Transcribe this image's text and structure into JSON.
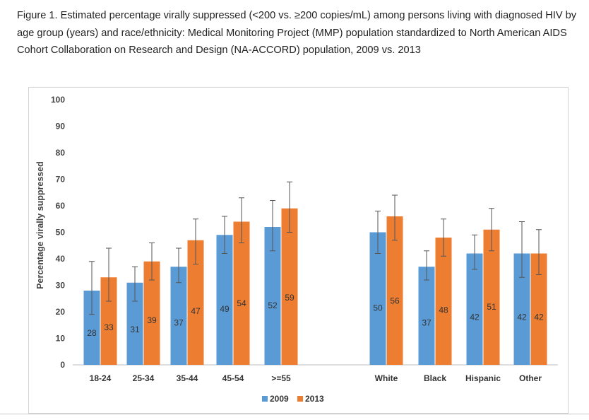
{
  "figure": {
    "title": "Figure 1. Estimated percentage virally suppressed (<200 vs. ≥200 copies/mL) among persons living with diagnosed HIV by age group (years) and race/ethnicity: Medical Monitoring Project (MMP) population standardized to North American AIDS Cohort Collaboration on Research and Design (NA-ACCORD) population, 2009 vs. 2013"
  },
  "chart_data": {
    "type": "bar",
    "ylabel": "Percentage virally suppressed",
    "ylim": [
      0,
      100
    ],
    "yticks": [
      0,
      10,
      20,
      30,
      40,
      50,
      60,
      70,
      80,
      90,
      100
    ],
    "grid": false,
    "legend_position": "bottom",
    "categories": [
      "18-24",
      "25-34",
      "35-44",
      "45-54",
      ">=55",
      "White",
      "Black",
      "Hispanic",
      "Other"
    ],
    "groups": [
      {
        "categories": [
          "18-24",
          "25-34",
          "35-44",
          "45-54",
          ">=55"
        ]
      },
      {
        "categories": [
          "White",
          "Black",
          "Hispanic",
          "Other"
        ]
      }
    ],
    "series": [
      {
        "name": "2009",
        "color": "#5b9bd5",
        "values": [
          28,
          31,
          37,
          49,
          52,
          50,
          37,
          42,
          42
        ],
        "error_low": [
          19,
          24,
          31,
          42,
          43,
          42,
          32,
          36,
          33
        ],
        "error_high": [
          39,
          37,
          44,
          56,
          62,
          58,
          43,
          49,
          54
        ]
      },
      {
        "name": "2013",
        "color": "#ed7d31",
        "values": [
          33,
          39,
          47,
          54,
          59,
          56,
          48,
          51,
          42
        ],
        "error_low": [
          24,
          32,
          38,
          46,
          50,
          47,
          41,
          43,
          34
        ],
        "error_high": [
          44,
          46,
          55,
          63,
          69,
          64,
          55,
          59,
          51
        ]
      }
    ]
  }
}
